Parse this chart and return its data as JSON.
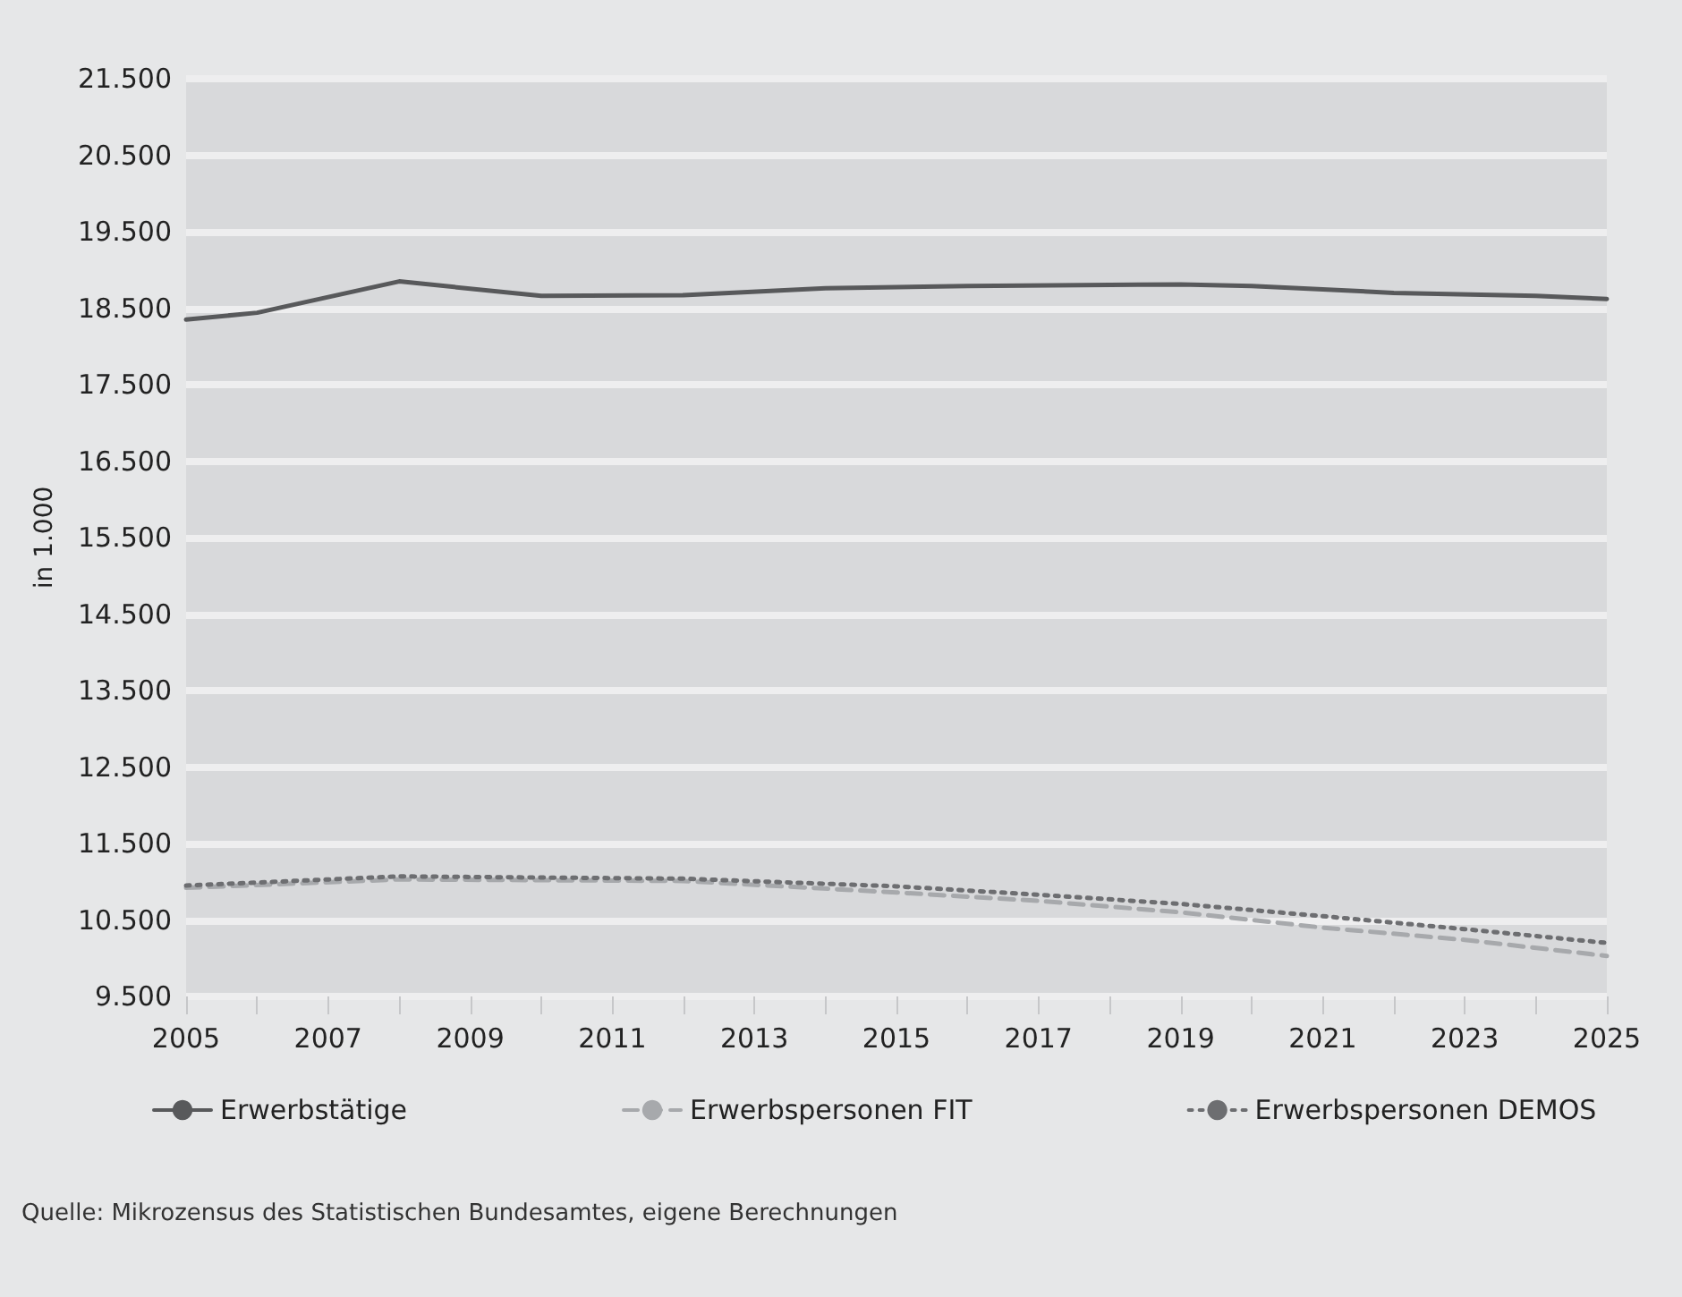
{
  "chart_data": {
    "type": "line",
    "ylabel": "in 1.000",
    "annotations": [
      "Quelle: Mikrozensus des Statistischen Bundesamtes, eigene Berechnungen"
    ],
    "xlim": [
      2005,
      2025
    ],
    "xticks": [
      2005,
      {
        "value": 2006,
        "label": null
      },
      2007,
      {
        "value": 2008,
        "label": null
      },
      2009,
      {
        "value": 2010,
        "label": null
      },
      2011,
      {
        "value": 2012,
        "label": null
      },
      2013,
      {
        "value": 2014,
        "label": null
      },
      2015,
      {
        "value": 2016,
        "label": null
      },
      2017,
      {
        "value": 2018,
        "label": null
      },
      2019,
      {
        "value": 2020,
        "label": null
      },
      2021,
      {
        "value": 2022,
        "label": null
      },
      2023,
      {
        "value": 2024,
        "label": null
      },
      2025
    ],
    "ylim": [
      9500,
      21500
    ],
    "yticks": [
      {
        "value": 9500,
        "label": "9.500"
      },
      {
        "value": 10500,
        "label": "10.500"
      },
      {
        "value": 11500,
        "label": "11.500"
      },
      {
        "value": 12500,
        "label": "12.500"
      },
      {
        "value": 13500,
        "label": "13.500"
      },
      {
        "value": 14500,
        "label": "14.500"
      },
      {
        "value": 15500,
        "label": "15.500"
      },
      {
        "value": 16500,
        "label": "16.500"
      },
      {
        "value": 17500,
        "label": "17.500"
      },
      {
        "value": 18500,
        "label": "18.500"
      },
      {
        "value": 19500,
        "label": "19.500"
      },
      {
        "value": 20500,
        "label": "20.500"
      },
      {
        "value": 21500,
        "label": "21.500"
      }
    ],
    "grid": "y",
    "legend": "bottom",
    "marker": "none",
    "series": [
      {
        "name": "Erwerbstätige",
        "color": "#58595b",
        "line_style": "solid",
        "x": [
          2005,
          2006,
          2008,
          2010,
          2012,
          2014,
          2016,
          2019,
          2020,
          2022,
          2024,
          2025
        ],
        "values": [
          18350,
          18440,
          18850,
          18660,
          18670,
          18760,
          18790,
          18810,
          18790,
          18700,
          18660,
          18620
        ]
      },
      {
        "name": "Erwerbspersonen FIT",
        "color": "#a7a9ac",
        "line_style": "dashed",
        "x": [
          2005,
          2008,
          2012,
          2015,
          2017,
          2019,
          2021,
          2023,
          2025
        ],
        "values": [
          10920,
          11030,
          11010,
          10860,
          10750,
          10600,
          10400,
          10240,
          10030
        ]
      },
      {
        "name": "Erwerbspersonen DEMOS",
        "color": "#6d6e71",
        "line_style": "dotted",
        "x": [
          2005,
          2008,
          2012,
          2015,
          2017,
          2019,
          2021,
          2023,
          2025
        ],
        "values": [
          10950,
          11070,
          11040,
          10940,
          10830,
          10710,
          10550,
          10380,
          10200
        ]
      }
    ]
  }
}
